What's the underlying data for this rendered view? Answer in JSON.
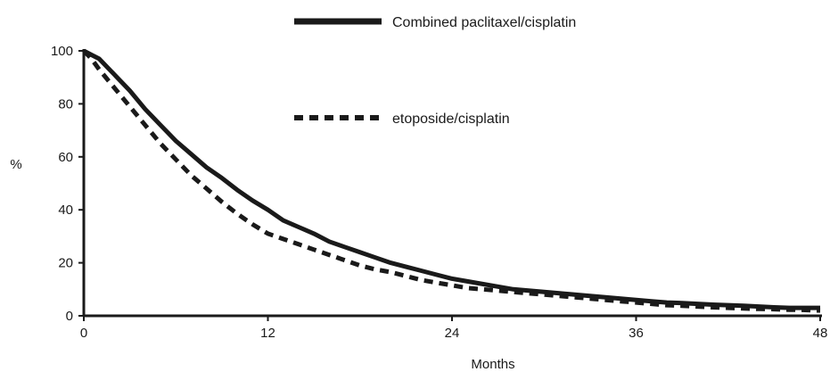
{
  "chart_data": {
    "type": "line",
    "title": "",
    "xlabel": "Months",
    "ylabel": "%",
    "xlim": [
      0,
      48
    ],
    "ylim": [
      0,
      100
    ],
    "xticks": [
      0,
      12,
      24,
      36,
      48
    ],
    "yticks": [
      0,
      20,
      40,
      60,
      80,
      100
    ],
    "grid": false,
    "legend_position": "top-center",
    "series": [
      {
        "name": "Combined paclitaxel/cisplatin",
        "style": "solid",
        "color": "#1a1a1a",
        "x": [
          0,
          0.5,
          1,
          2,
          3,
          4,
          5,
          6,
          7,
          8,
          9,
          10,
          11,
          12,
          13,
          14,
          15,
          16,
          17,
          18,
          19,
          20,
          21,
          22,
          23,
          24,
          25,
          26,
          27,
          28,
          29,
          30,
          31,
          32,
          33,
          34,
          35,
          36,
          37,
          38,
          39,
          40,
          41,
          42,
          43,
          44,
          45,
          46,
          47,
          48
        ],
        "y": [
          100,
          98.5,
          97,
          91,
          85,
          78,
          72,
          66,
          61,
          56,
          52,
          47.5,
          43.5,
          40,
          36,
          33.5,
          31,
          28,
          26,
          24,
          22,
          20,
          18.5,
          17,
          15.5,
          14,
          13,
          12,
          11,
          10,
          9.5,
          9,
          8.5,
          8,
          7.5,
          7,
          6.5,
          6,
          5.5,
          5,
          4.8,
          4.5,
          4.2,
          4,
          3.8,
          3.5,
          3.2,
          3,
          3,
          3
        ]
      },
      {
        "name": "etoposide/cisplatin",
        "style": "dashed",
        "color": "#1a1a1a",
        "x": [
          0,
          0.5,
          1,
          2,
          3,
          4,
          5,
          6,
          7,
          8,
          9,
          10,
          11,
          12,
          13,
          14,
          15,
          16,
          17,
          18,
          19,
          20,
          21,
          22,
          23,
          24,
          25,
          26,
          27,
          28,
          29,
          30,
          31,
          32,
          33,
          34,
          35,
          36,
          37,
          38,
          39,
          40,
          41,
          42,
          43,
          44,
          45,
          46,
          47,
          48
        ],
        "y": [
          100,
          97,
          93,
          86,
          79,
          72,
          65,
          59,
          53,
          48,
          43,
          38.5,
          34.5,
          31,
          29,
          27,
          25,
          23,
          21,
          19,
          17.5,
          16.5,
          15,
          13.5,
          12.5,
          11.5,
          10.5,
          10,
          9.5,
          9,
          8.5,
          8,
          7.5,
          7,
          6.5,
          6,
          5.5,
          5,
          4.5,
          4,
          3.8,
          3.5,
          3.2,
          3,
          2.8,
          2.6,
          2.5,
          2.3,
          2.2,
          2
        ]
      }
    ]
  }
}
